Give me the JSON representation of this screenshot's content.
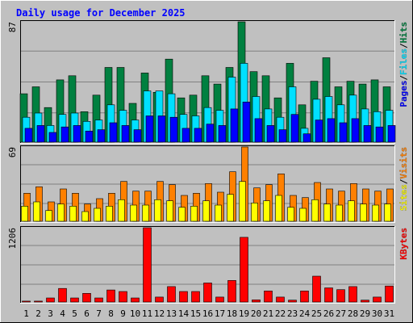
{
  "chart_data": {
    "type": "bar",
    "title": "Daily usage for December 2025",
    "categories": [
      "1",
      "2",
      "3",
      "4",
      "5",
      "6",
      "7",
      "8",
      "9",
      "10",
      "11",
      "12",
      "13",
      "14",
      "15",
      "16",
      "17",
      "18",
      "19",
      "20",
      "21",
      "22",
      "23",
      "24",
      "25",
      "26",
      "27",
      "28",
      "29",
      "30",
      "31"
    ],
    "weekend_days": [
      "6",
      "7",
      "13",
      "14",
      "20",
      "21",
      "27",
      "28"
    ],
    "grid": true,
    "panels": [
      {
        "name": "hits-files-pages",
        "ymax": 87,
        "ymax_label": "87",
        "legend": [
          "Pages",
          "Files",
          "Hits"
        ],
        "series": [
          {
            "name": "Hits",
            "color": "#008040",
            "values": [
              35,
              40,
              25,
              45,
              48,
              22,
              34,
              54,
              54,
              28,
              50,
              36,
              60,
              32,
              34,
              48,
              42,
              54,
              87,
              51,
              48,
              32,
              57,
              27,
              44,
              61,
              40,
              44,
              42,
              45,
              40
            ]
          },
          {
            "name": "Files",
            "color": "#00e0ff",
            "values": [
              18,
              21,
              12,
              20,
              21,
              15,
              16,
              27,
              23,
              16,
              37,
              37,
              35,
              20,
              19,
              25,
              23,
              47,
              57,
              33,
              24,
              18,
              40,
              10,
              31,
              33,
              27,
              34,
              24,
              22,
              23
            ]
          },
          {
            "name": "Pages",
            "color": "#0000ff",
            "values": [
              10,
              12,
              7,
              11,
              12,
              8,
              9,
              14,
              12,
              9,
              19,
              19,
              18,
              10,
              10,
              13,
              12,
              24,
              29,
              17,
              12,
              9,
              20,
              6,
              16,
              17,
              14,
              17,
              12,
              11,
              12
            ]
          }
        ]
      },
      {
        "name": "visits-sites",
        "ymax": 69,
        "ymax_label": "69",
        "legend": [
          "Sites",
          "Visits"
        ],
        "series": [
          {
            "name": "Visits",
            "color": "#ff8000",
            "values": [
              26,
              32,
              18,
              30,
              26,
              16,
              21,
              26,
              37,
              28,
              28,
              37,
              34,
              24,
              26,
              35,
              27,
              46,
              69,
              31,
              34,
              44,
              24,
              22,
              36,
              30,
              28,
              35,
              30,
              28,
              30
            ]
          },
          {
            "name": "Sites",
            "color": "#ffff00",
            "values": [
              14,
              18,
              10,
              16,
              14,
              9,
              12,
              14,
              20,
              15,
              15,
              20,
              19,
              13,
              14,
              19,
              15,
              25,
              37,
              17,
              19,
              24,
              13,
              12,
              20,
              16,
              15,
              19,
              16,
              15,
              16
            ]
          }
        ]
      },
      {
        "name": "kbytes",
        "ymax": 1206,
        "ymax_label": "1206",
        "legend": [
          "KBytes"
        ],
        "series": [
          {
            "name": "KBytes",
            "color": "#ff0000",
            "values": [
              15,
              15,
              65,
              220,
              65,
              140,
              65,
              195,
              170,
              65,
              1206,
              80,
              250,
              170,
              170,
              310,
              80,
              350,
              1050,
              35,
              180,
              80,
              30,
              180,
              420,
              230,
              200,
              250,
              30,
              80,
              260
            ]
          }
        ]
      }
    ]
  }
}
